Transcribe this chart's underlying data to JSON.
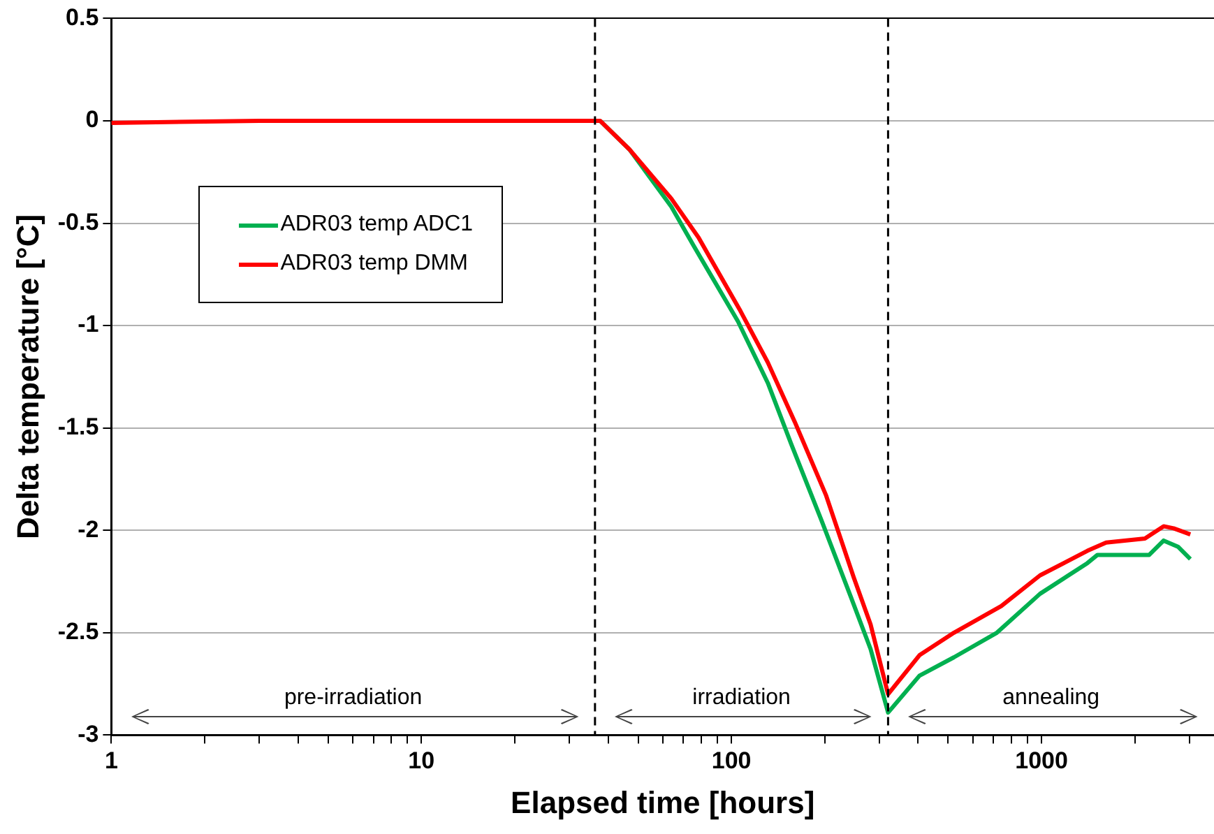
{
  "chart_data": {
    "type": "line",
    "xlabel": "Elapsed time [hours]",
    "ylabel": "Delta temperature [°C]",
    "log": "x",
    "xlim": [
      1,
      3600
    ],
    "ylim": [
      -3,
      0.5
    ],
    "xticks": [
      1,
      {
        "value": 2,
        "label": null
      },
      {
        "value": 3,
        "label": null
      },
      {
        "value": 4,
        "label": null
      },
      {
        "value": 5,
        "label": null
      },
      {
        "value": 6,
        "label": null
      },
      {
        "value": 7,
        "label": null
      },
      {
        "value": 8,
        "label": null
      },
      {
        "value": 9,
        "label": null
      },
      10,
      {
        "value": 20,
        "label": null
      },
      {
        "value": 30,
        "label": null
      },
      {
        "value": 40,
        "label": null
      },
      {
        "value": 50,
        "label": null
      },
      {
        "value": 60,
        "label": null
      },
      {
        "value": 70,
        "label": null
      },
      {
        "value": 80,
        "label": null
      },
      {
        "value": 90,
        "label": null
      },
      100,
      {
        "value": 200,
        "label": null
      },
      {
        "value": 300,
        "label": null
      },
      {
        "value": 400,
        "label": null
      },
      {
        "value": 500,
        "label": null
      },
      {
        "value": 600,
        "label": null
      },
      {
        "value": 700,
        "label": null
      },
      {
        "value": 800,
        "label": null
      },
      {
        "value": 900,
        "label": null
      },
      1000,
      {
        "value": 2000,
        "label": null
      },
      {
        "value": 3000,
        "label": null
      }
    ],
    "yticks": [
      -3,
      -2.5,
      -2,
      -1.5,
      -1,
      -0.5,
      0,
      0.5
    ],
    "grid": "y",
    "legend": "top left",
    "marker": "none",
    "line_style": "solid",
    "series": [
      {
        "name": "ADR03 temp ADC1",
        "color": "#00b050",
        "x": [
          37.7,
          46.9,
          64,
          75.5,
          105,
          131,
          156,
          195,
          242,
          281,
          320,
          404,
          522,
          718,
          989,
          1406,
          1515,
          2225,
          2477,
          2755,
          3020
        ],
        "values": [
          0,
          -0.14,
          -0.42,
          -0.61,
          -0.98,
          -1.28,
          -1.58,
          -1.95,
          -2.32,
          -2.58,
          -2.89,
          -2.71,
          -2.62,
          -2.5,
          -2.31,
          -2.16,
          -2.12,
          -2.12,
          -2.05,
          -2.08,
          -2.14
        ]
      },
      {
        "name": "ADR03 temp DMM",
        "color": "#ff0000",
        "x": [
          1,
          3,
          10,
          37.7,
          46.9,
          64,
          78.3,
          107,
          131,
          160,
          202,
          248,
          281,
          320,
          404,
          522,
          742,
          989,
          1406,
          1616,
          2155,
          2477,
          2667,
          3020
        ],
        "values": [
          -0.01,
          0,
          0,
          0,
          -0.14,
          -0.38,
          -0.57,
          -0.93,
          -1.18,
          -1.47,
          -1.83,
          -2.23,
          -2.46,
          -2.8,
          -2.61,
          -2.5,
          -2.37,
          -2.22,
          -2.1,
          -2.06,
          -2.04,
          -1.98,
          -1.99,
          -2.02
        ]
      }
    ],
    "ref_lines": [
      {
        "axis": "x",
        "value": 36.3,
        "color": "#000000",
        "line_style": "dashed"
      },
      {
        "axis": "x",
        "value": 320,
        "color": "#000000",
        "line_style": "dashed"
      }
    ],
    "annotations": [
      "pre-irradiation",
      "irradiation",
      "annealing"
    ]
  }
}
